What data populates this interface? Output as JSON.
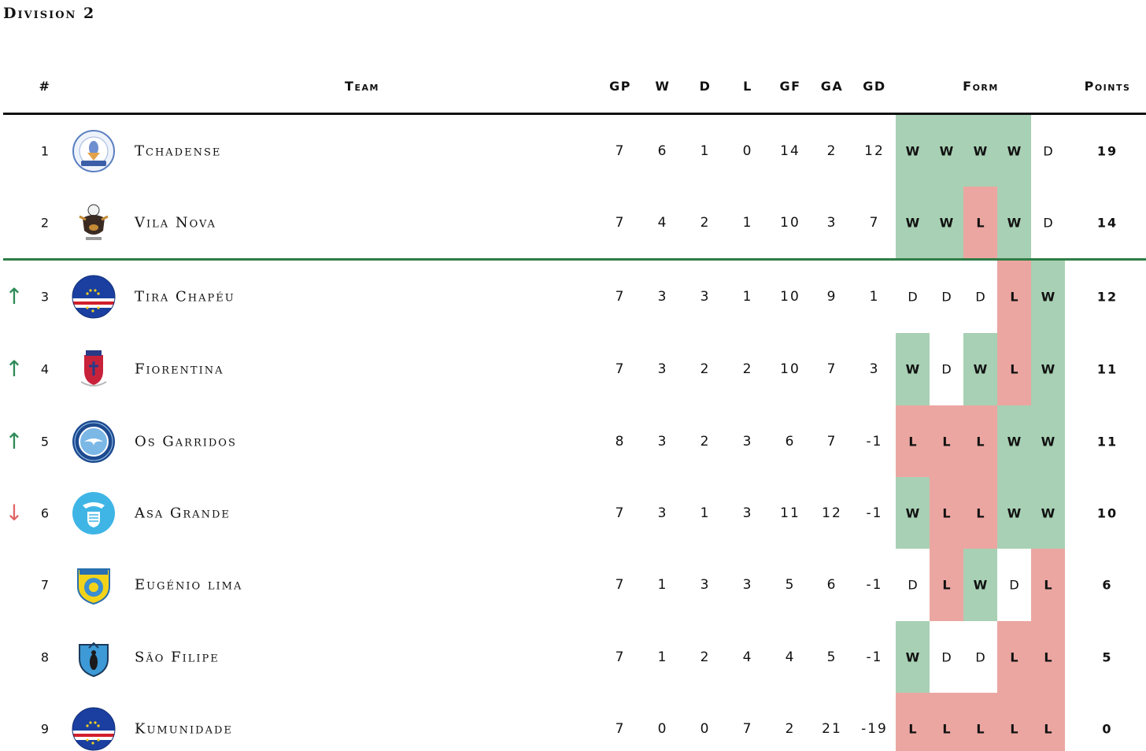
{
  "title": "Division 2",
  "headers": {
    "pos": "#",
    "team": "Team",
    "gp": "GP",
    "w": "W",
    "d": "D",
    "l": "L",
    "gf": "GF",
    "ga": "GA",
    "gd": "GD",
    "form": "Form",
    "points": "Points"
  },
  "colors": {
    "win": "#a8d0b4",
    "loss": "#eba6a1",
    "promotion_line": "#2e7d46",
    "arrow_up": "#2e8b57",
    "arrow_down": "#e06666"
  },
  "rows": [
    {
      "pos": "1",
      "arrow": "",
      "team": "Tchadense",
      "logo": "tchadense-crest-icon",
      "gp": "7",
      "w": "6",
      "d": "1",
      "l": "0",
      "gf": "14",
      "ga": "2",
      "gd": "12",
      "form": [
        "W",
        "W",
        "W",
        "W",
        "D"
      ],
      "points": "19"
    },
    {
      "pos": "2",
      "arrow": "",
      "team": "Vila Nova",
      "logo": "vila-nova-bull-crest-icon",
      "gp": "7",
      "w": "4",
      "d": "2",
      "l": "1",
      "gf": "10",
      "ga": "3",
      "gd": "7",
      "form": [
        "W",
        "W",
        "L",
        "W",
        "D"
      ],
      "points": "14"
    },
    {
      "pos": "3",
      "arrow": "↑",
      "team": "Tira Chapéu",
      "logo": "cape-verde-flag-icon",
      "gp": "7",
      "w": "3",
      "d": "3",
      "l": "1",
      "gf": "10",
      "ga": "9",
      "gd": "1",
      "form": [
        "D",
        "D",
        "D",
        "L",
        "W"
      ],
      "points": "12"
    },
    {
      "pos": "4",
      "arrow": "↑",
      "team": "Fiorentina",
      "logo": "fiorentina-crest-icon",
      "gp": "7",
      "w": "3",
      "d": "2",
      "l": "2",
      "gf": "10",
      "ga": "7",
      "gd": "3",
      "form": [
        "W",
        "D",
        "W",
        "L",
        "W"
      ],
      "points": "11"
    },
    {
      "pos": "5",
      "arrow": "↑",
      "team": "Os Garridos",
      "logo": "os-garridos-crest-icon",
      "gp": "8",
      "w": "3",
      "d": "2",
      "l": "3",
      "gf": "6",
      "ga": "7",
      "gd": "-1",
      "form": [
        "L",
        "L",
        "L",
        "W",
        "W"
      ],
      "points": "11"
    },
    {
      "pos": "6",
      "arrow": "↓",
      "team": "Asa Grande",
      "logo": "asa-grande-crest-icon",
      "gp": "7",
      "w": "3",
      "d": "1",
      "l": "3",
      "gf": "11",
      "ga": "12",
      "gd": "-1",
      "form": [
        "W",
        "L",
        "L",
        "W",
        "W"
      ],
      "points": "10"
    },
    {
      "pos": "7",
      "arrow": "",
      "team": "Eugénio lima",
      "logo": "eugenio-lima-lion-crest-icon",
      "gp": "7",
      "w": "1",
      "d": "3",
      "l": "3",
      "gf": "5",
      "ga": "6",
      "gd": "-1",
      "form": [
        "D",
        "L",
        "W",
        "D",
        "L"
      ],
      "points": "6"
    },
    {
      "pos": "8",
      "arrow": "",
      "team": "São Filipe",
      "logo": "sao-filipe-crest-icon",
      "gp": "7",
      "w": "1",
      "d": "2",
      "l": "4",
      "gf": "4",
      "ga": "5",
      "gd": "-1",
      "form": [
        "W",
        "D",
        "D",
        "L",
        "L"
      ],
      "points": "5"
    },
    {
      "pos": "9",
      "arrow": "",
      "team": "Kumunidade",
      "logo": "cape-verde-flag-icon",
      "gp": "7",
      "w": "0",
      "d": "0",
      "l": "7",
      "gf": "2",
      "ga": "21",
      "gd": "-19",
      "form": [
        "L",
        "L",
        "L",
        "L",
        "L"
      ],
      "points": "0"
    }
  ]
}
